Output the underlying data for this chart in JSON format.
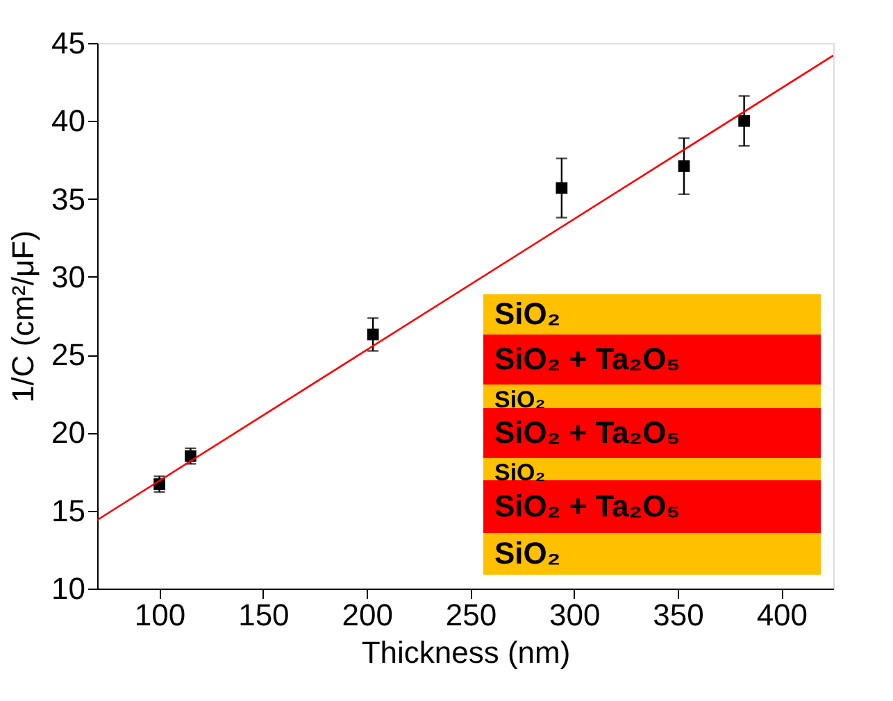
{
  "chart_data": {
    "type": "scatter",
    "xlabel": "Thickness (nm)",
    "ylabel": "1/C (cm²/μF)",
    "xlim": [
      70,
      425
    ],
    "xticks": [
      100,
      150,
      200,
      250,
      300,
      350,
      400
    ],
    "ylim": [
      10,
      45
    ],
    "yticks": [
      10,
      15,
      20,
      25,
      30,
      35,
      40,
      45
    ],
    "grid": false,
    "marker": "square",
    "series": [
      {
        "color": "#000000",
        "x": [
          100,
          115,
          203,
          294,
          353,
          382
        ],
        "values": [
          16.7,
          18.5,
          26.3,
          35.7,
          37.1,
          40.0
        ],
        "errors": [
          0.5,
          0.5,
          1.05,
          1.9,
          1.8,
          1.6
        ]
      },
      {
        "type": "line",
        "marker": "none",
        "color": "#ff0000",
        "x": [
          70,
          425
        ],
        "values": [
          14.4,
          44.2
        ]
      }
    ],
    "annotations": [
      "SiO₂",
      "SiO₂ + Ta₂O₅",
      "SiO₂",
      "SiO₂ + Ta₂O₅",
      "SiO₂",
      "SiO₂ + Ta₂O₅",
      "SiO₂"
    ]
  }
}
